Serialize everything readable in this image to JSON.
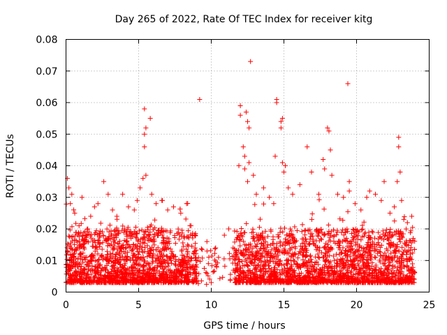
{
  "chart_data": {
    "type": "scatter",
    "title": "Day 265 of 2022, Rate Of TEC Index for receiver kitg",
    "xlabel": "GPS time / hours",
    "ylabel": "ROTI / TECUs",
    "xlim": [
      0,
      25
    ],
    "ylim": [
      0,
      0.08
    ],
    "grid": true,
    "marker": "plus",
    "color": "#ff0000",
    "x_ticks": [
      0,
      5,
      10,
      15,
      20,
      25
    ],
    "x_tick_labels": [
      "0",
      "5",
      "10",
      "15",
      "20",
      "25"
    ],
    "y_ticks": [
      0,
      0.01,
      0.02,
      0.03,
      0.04,
      0.05,
      0.06,
      0.07,
      0.08
    ],
    "y_tick_labels": [
      "0",
      "0.01",
      "0.02",
      "0.03",
      "0.04",
      "0.05",
      "0.06",
      "0.07",
      "0.08"
    ],
    "series": [
      {
        "name": "ROTI",
        "points": [
          [
            0.1,
            0.036
          ],
          [
            0.2,
            0.033
          ],
          [
            0.4,
            0.031
          ],
          [
            0.3,
            0.028
          ],
          [
            0.6,
            0.025
          ],
          [
            0.9,
            0.021
          ],
          [
            1.1,
            0.03
          ],
          [
            1.5,
            0.02
          ],
          [
            1.7,
            0.024
          ],
          [
            2.2,
            0.028
          ],
          [
            2.6,
            0.035
          ],
          [
            2.9,
            0.031
          ],
          [
            3.2,
            0.026
          ],
          [
            3.5,
            0.024
          ],
          [
            3.9,
            0.031
          ],
          [
            4.3,
            0.027
          ],
          [
            4.7,
            0.026
          ],
          [
            4.9,
            0.029
          ],
          [
            5.1,
            0.033
          ],
          [
            5.3,
            0.036
          ],
          [
            5.4,
            0.046
          ],
          [
            5.4,
            0.05
          ],
          [
            5.5,
            0.052
          ],
          [
            5.4,
            0.058
          ],
          [
            5.5,
            0.037
          ],
          [
            5.8,
            0.055
          ],
          [
            5.9,
            0.031
          ],
          [
            6.2,
            0.028
          ],
          [
            6.6,
            0.029
          ],
          [
            7.0,
            0.026
          ],
          [
            7.4,
            0.027
          ],
          [
            7.9,
            0.025
          ],
          [
            8.3,
            0.028
          ],
          [
            8.6,
            0.021
          ],
          [
            8.9,
            0.018
          ],
          [
            9.2,
            0.061
          ],
          [
            9.7,
            0.016
          ],
          [
            10.0,
            0.003
          ],
          [
            9.8,
            0.009
          ],
          [
            10.3,
            0.014
          ],
          [
            10.5,
            0.011
          ],
          [
            10.9,
            0.018
          ],
          [
            11.2,
            0.02
          ],
          [
            11.5,
            0.014
          ],
          [
            11.9,
            0.04
          ],
          [
            12.0,
            0.059
          ],
          [
            12.0,
            0.056
          ],
          [
            12.4,
            0.057
          ],
          [
            12.5,
            0.054
          ],
          [
            12.6,
            0.052
          ],
          [
            12.2,
            0.046
          ],
          [
            12.3,
            0.043
          ],
          [
            12.3,
            0.039
          ],
          [
            12.6,
            0.041
          ],
          [
            12.7,
            0.073
          ],
          [
            12.5,
            0.035
          ],
          [
            12.9,
            0.037
          ],
          [
            13.1,
            0.031
          ],
          [
            13.6,
            0.033
          ],
          [
            14.0,
            0.03
          ],
          [
            14.3,
            0.028
          ],
          [
            14.5,
            0.061
          ],
          [
            14.5,
            0.06
          ],
          [
            14.4,
            0.043
          ],
          [
            14.8,
            0.054
          ],
          [
            14.8,
            0.052
          ],
          [
            14.9,
            0.055
          ],
          [
            14.9,
            0.041
          ],
          [
            15.0,
            0.038
          ],
          [
            15.1,
            0.04
          ],
          [
            15.3,
            0.033
          ],
          [
            15.6,
            0.031
          ],
          [
            16.1,
            0.034
          ],
          [
            16.6,
            0.046
          ],
          [
            16.9,
            0.038
          ],
          [
            17.4,
            0.031
          ],
          [
            17.7,
            0.042
          ],
          [
            17.8,
            0.039
          ],
          [
            18.0,
            0.052
          ],
          [
            18.1,
            0.051
          ],
          [
            18.2,
            0.045
          ],
          [
            18.3,
            0.037
          ],
          [
            18.7,
            0.031
          ],
          [
            19.1,
            0.03
          ],
          [
            19.4,
            0.066
          ],
          [
            19.5,
            0.035
          ],
          [
            19.5,
            0.032
          ],
          [
            19.9,
            0.028
          ],
          [
            20.3,
            0.026
          ],
          [
            20.7,
            0.03
          ],
          [
            20.9,
            0.032
          ],
          [
            21.3,
            0.031
          ],
          [
            21.7,
            0.029
          ],
          [
            21.9,
            0.035
          ],
          [
            22.3,
            0.025
          ],
          [
            22.6,
            0.027
          ],
          [
            22.9,
            0.049
          ],
          [
            22.9,
            0.046
          ],
          [
            23.0,
            0.038
          ],
          [
            22.8,
            0.035
          ],
          [
            23.1,
            0.029
          ],
          [
            23.5,
            0.022
          ],
          [
            23.8,
            0.024
          ],
          [
            23.9,
            0.017
          ]
        ]
      }
    ]
  }
}
